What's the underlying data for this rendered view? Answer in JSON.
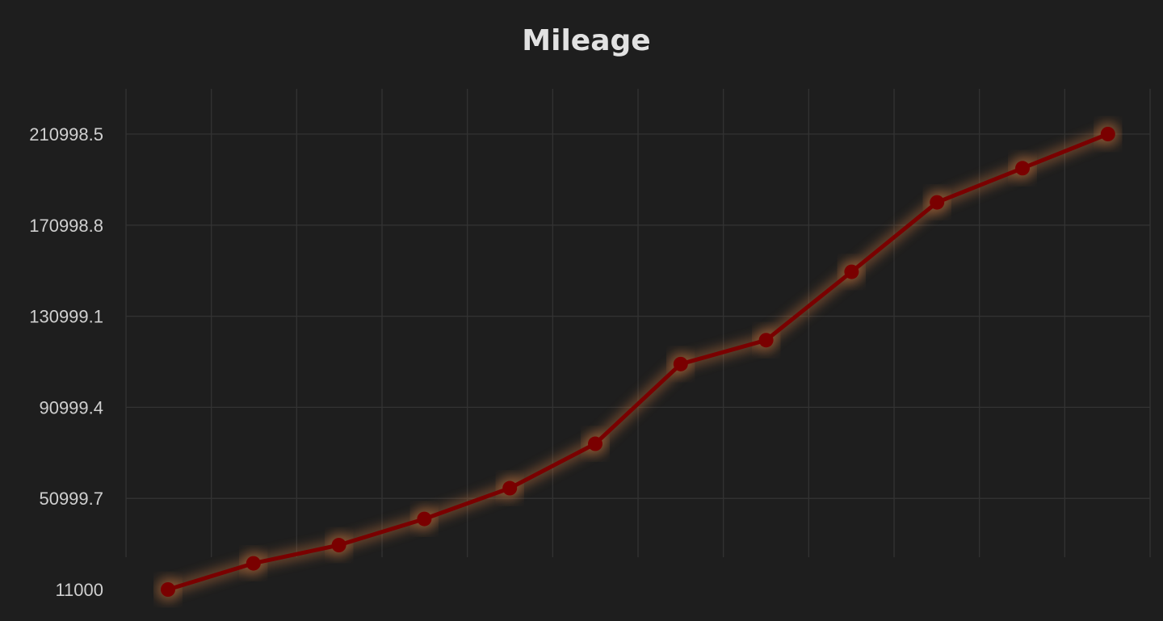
{
  "chart_data": {
    "type": "line",
    "title": "Mileage",
    "xlabel": "",
    "ylabel": "",
    "ylim": [
      11000,
      210998.5
    ],
    "y_ticks": [
      "11000",
      "50999.7",
      "90999.4",
      "130999.1",
      "170998.8",
      "210998.5"
    ],
    "x": [
      1,
      2,
      3,
      4,
      5,
      6,
      7,
      8,
      9,
      10,
      11,
      12
    ],
    "series": [
      {
        "name": "",
        "values": [
          11000,
          22500,
          30500,
          42000,
          55500,
          75000,
          110000,
          120500,
          150500,
          181000,
          196000,
          210998.5
        ]
      }
    ],
    "grid": true,
    "legend": "none",
    "colors": {
      "background": "#1e1e1e",
      "line": "#7a0000",
      "marker": "#7a0000",
      "glow": "#b06a3a",
      "grid": "#333333",
      "text": "#cfcfcf"
    }
  }
}
